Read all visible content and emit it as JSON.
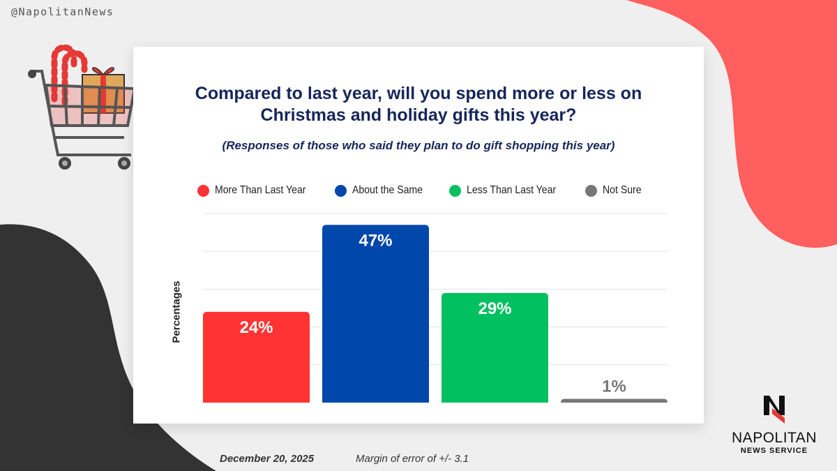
{
  "handle": "@NapolitanNews",
  "colors": {
    "background": "#efefef",
    "accent_coral": "#ff5f5f",
    "dark_blob": "#333333",
    "title_navy": "#16265a"
  },
  "chart_data": {
    "type": "bar",
    "title": "Compared to last year, will you spend more or less on\nChristmas and holiday gifts this year?",
    "subtitle": "(Responses of those who said they plan to do gift shopping this year)",
    "ylabel": "Percentages",
    "xlabel": "",
    "ylim": [
      0,
      50
    ],
    "grid": true,
    "legend_position": "top",
    "categories": [
      "More Than Last Year",
      "About the Same",
      "Less Than Last Year",
      "Not Sure"
    ],
    "values": [
      24,
      47,
      29,
      1
    ],
    "data_labels": [
      "24%",
      "47%",
      "29%",
      "1%"
    ],
    "colors": [
      "#ff3333",
      "#0047ab",
      "#00c060",
      "#777777"
    ]
  },
  "footer": {
    "date": "December 20, 2025",
    "margin_of_error": "Margin of error of +/- 3.1"
  },
  "logo": {
    "name": "NAPOLITAN",
    "sub": "NEWS SERVICE"
  },
  "icons": [
    "shopping-cart-icon",
    "candy-cane-icon",
    "gift-box-icon",
    "napolitan-logo-icon"
  ]
}
